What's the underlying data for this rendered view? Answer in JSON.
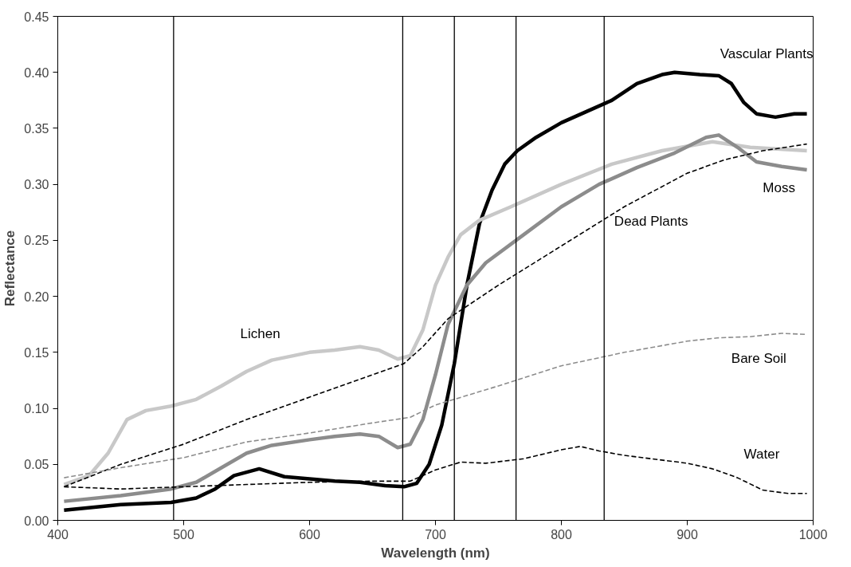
{
  "chart_data": {
    "type": "line",
    "xlabel": "Wavelength (nm)",
    "ylabel": "Reflectance",
    "xlim": [
      400,
      1000
    ],
    "xticks": [
      400,
      500,
      600,
      700,
      800,
      900,
      1000
    ],
    "ylim": [
      0,
      0.45
    ],
    "yticks": [
      {
        "value": 0,
        "label": "0.00"
      },
      {
        "value": 0.05,
        "label": "0.05"
      },
      {
        "value": 0.1,
        "label": "0.10"
      },
      {
        "value": 0.15,
        "label": "0.15"
      },
      {
        "value": 0.2,
        "label": "0.20"
      },
      {
        "value": 0.25,
        "label": "0.25"
      },
      {
        "value": 0.3,
        "label": "0.30"
      },
      {
        "value": 0.35,
        "label": "0.35"
      },
      {
        "value": 0.4,
        "label": "0.40"
      },
      {
        "value": 0.45,
        "label": "0.45"
      }
    ],
    "grid": false,
    "ref_lines": [
      {
        "axis": "x",
        "value": 492,
        "label": null,
        "color": "#000000"
      },
      {
        "axis": "x",
        "value": 674,
        "label": null,
        "color": "#000000"
      },
      {
        "axis": "x",
        "value": 715,
        "label": null,
        "color": "#000000"
      },
      {
        "axis": "x",
        "value": 764,
        "label": null,
        "color": "#000000"
      },
      {
        "axis": "x",
        "value": 834,
        "label": null,
        "color": "#000000"
      }
    ],
    "series": [
      {
        "name": "Vascular Plants",
        "color": "#000000",
        "line_style": "solid",
        "x": [
          405,
          450,
          490,
          510,
          525,
          540,
          560,
          580,
          600,
          620,
          640,
          660,
          675,
          685,
          695,
          705,
          715,
          725,
          735,
          745,
          755,
          765,
          780,
          800,
          820,
          840,
          860,
          880,
          890,
          910,
          925,
          935,
          945,
          955,
          970,
          985,
          995
        ],
        "values": [
          0.009,
          0.014,
          0.016,
          0.02,
          0.028,
          0.04,
          0.046,
          0.039,
          0.037,
          0.035,
          0.034,
          0.031,
          0.03,
          0.033,
          0.05,
          0.085,
          0.14,
          0.21,
          0.265,
          0.295,
          0.318,
          0.33,
          0.342,
          0.355,
          0.365,
          0.375,
          0.39,
          0.398,
          0.4,
          0.398,
          0.397,
          0.39,
          0.373,
          0.363,
          0.36,
          0.363,
          0.363
        ]
      },
      {
        "name": "Lichen",
        "color": "#c8c8c8",
        "line_style": "solid",
        "x": [
          405,
          425,
          440,
          455,
          470,
          490,
          510,
          530,
          550,
          570,
          600,
          620,
          640,
          655,
          670,
          680,
          690,
          700,
          710,
          720,
          735,
          760,
          800,
          840,
          880,
          920,
          950,
          995
        ],
        "values": [
          0.032,
          0.04,
          0.06,
          0.09,
          0.098,
          0.102,
          0.108,
          0.12,
          0.133,
          0.143,
          0.15,
          0.152,
          0.155,
          0.152,
          0.144,
          0.147,
          0.17,
          0.21,
          0.235,
          0.255,
          0.268,
          0.28,
          0.3,
          0.318,
          0.33,
          0.338,
          0.333,
          0.33
        ]
      },
      {
        "name": "Moss",
        "color": "#8c8c8c",
        "line_style": "solid",
        "x": [
          405,
          450,
          490,
          510,
          530,
          550,
          570,
          600,
          620,
          640,
          655,
          670,
          680,
          690,
          700,
          710,
          725,
          740,
          770,
          800,
          830,
          860,
          890,
          915,
          925,
          940,
          955,
          975,
          995
        ],
        "values": [
          0.017,
          0.022,
          0.028,
          0.034,
          0.047,
          0.06,
          0.067,
          0.072,
          0.075,
          0.077,
          0.075,
          0.065,
          0.068,
          0.09,
          0.13,
          0.175,
          0.21,
          0.23,
          0.255,
          0.28,
          0.3,
          0.315,
          0.328,
          0.342,
          0.344,
          0.333,
          0.32,
          0.316,
          0.313
        ]
      },
      {
        "name": "Dead Plants",
        "color": "#000000",
        "line_style": "dashed",
        "x": [
          405,
          450,
          500,
          550,
          600,
          650,
          675,
          690,
          710,
          750,
          800,
          850,
          900,
          930,
          960,
          995
        ],
        "values": [
          0.03,
          0.05,
          0.068,
          0.09,
          0.11,
          0.13,
          0.14,
          0.155,
          0.18,
          0.21,
          0.245,
          0.28,
          0.31,
          0.322,
          0.33,
          0.336
        ]
      },
      {
        "name": "Bare Soil",
        "color": "#8c8c8c",
        "line_style": "dashed",
        "x": [
          405,
          450,
          500,
          550,
          600,
          650,
          680,
          700,
          750,
          800,
          850,
          900,
          925,
          950,
          975,
          995
        ],
        "values": [
          0.038,
          0.047,
          0.056,
          0.07,
          0.078,
          0.087,
          0.092,
          0.103,
          0.12,
          0.138,
          0.15,
          0.16,
          0.163,
          0.164,
          0.167,
          0.166
        ]
      },
      {
        "name": "Water",
        "color": "#000000",
        "line_style": "dashed",
        "x": [
          405,
          450,
          500,
          550,
          600,
          650,
          680,
          700,
          720,
          740,
          770,
          800,
          815,
          830,
          850,
          900,
          920,
          940,
          960,
          980,
          995
        ],
        "values": [
          0.03,
          0.028,
          0.03,
          0.032,
          0.034,
          0.035,
          0.035,
          0.045,
          0.052,
          0.051,
          0.055,
          0.063,
          0.066,
          0.062,
          0.058,
          0.051,
          0.046,
          0.038,
          0.027,
          0.024,
          0.024
        ]
      }
    ]
  }
}
